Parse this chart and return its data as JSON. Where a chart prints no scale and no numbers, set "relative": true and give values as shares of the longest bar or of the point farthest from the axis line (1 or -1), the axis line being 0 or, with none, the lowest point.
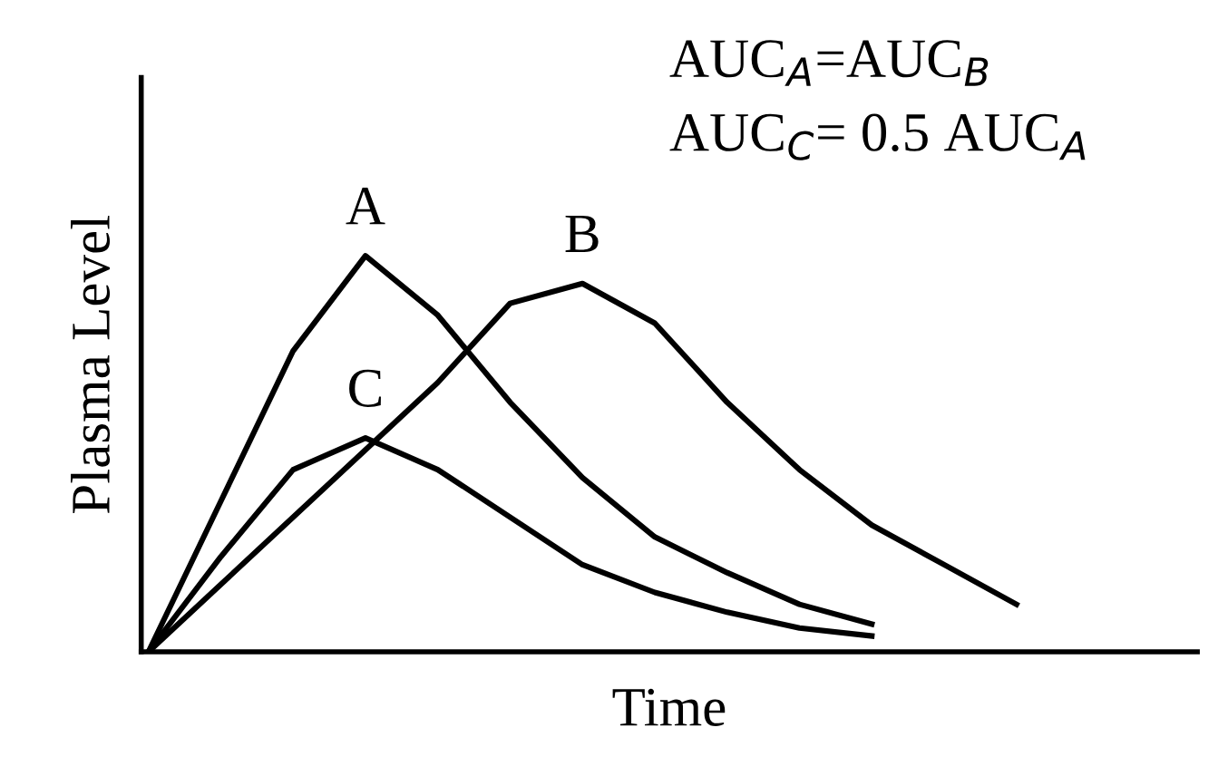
{
  "chart_data": {
    "type": "line",
    "relative": true,
    "xlabel": "Time",
    "ylabel": "Plasma Level",
    "categories": [
      null,
      null,
      null,
      null,
      null,
      null,
      null,
      null,
      null,
      null,
      null,
      null,
      null,
      null,
      null
    ],
    "series": [
      {
        "name": "A",
        "color": "#000000",
        "values": [
          0,
          0.38,
          0.76,
          1,
          0.85,
          0.63,
          0.44,
          0.29,
          0.2,
          0.12,
          0.07,
          null,
          null,
          null,
          null
        ]
      },
      {
        "name": "B",
        "color": "#000000",
        "values": [
          0,
          0.17,
          0.34,
          0.51,
          0.68,
          0.88,
          0.93,
          0.83,
          0.63,
          0.46,
          0.32,
          0.22,
          0.12,
          null,
          null
        ]
      },
      {
        "name": "C",
        "color": "#000000",
        "values": [
          0,
          0.24,
          0.46,
          0.54,
          0.46,
          0.34,
          0.22,
          0.15,
          0.1,
          0.06,
          0.04,
          null,
          null,
          null,
          null
        ]
      }
    ],
    "annotations": [
      "AUC$_{A}$=AUC$_{B}$",
      "AUC$_{C}$= 0.5 AUC$_{A}$"
    ],
    "tick_labels": false,
    "grid": false,
    "legend": false,
    "marker": "none",
    "line_style": "solid"
  }
}
